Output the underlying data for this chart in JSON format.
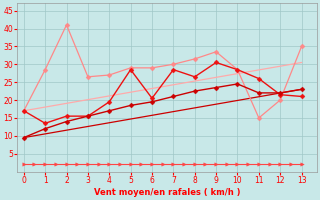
{
  "background_color": "#c8e8e8",
  "grid_color": "#b0d0d0",
  "xlabel": "Vent moyen/en rafales ( km/h )",
  "xlabel_color": "#ff0000",
  "tick_color": "#ff0000",
  "ylim": [
    0,
    47
  ],
  "xlim": [
    -0.3,
    13.7
  ],
  "yticks": [
    5,
    10,
    15,
    20,
    25,
    30,
    35,
    40,
    45
  ],
  "xticks": [
    0,
    1,
    2,
    3,
    4,
    5,
    6,
    7,
    8,
    9,
    10,
    11,
    12,
    13
  ],
  "series": [
    {
      "name": "linear_trend",
      "x": [
        0,
        1,
        2,
        3,
        4,
        5,
        6,
        7,
        8,
        9,
        10,
        11,
        12,
        13
      ],
      "y": [
        9.5,
        12.0,
        14.0,
        15.5,
        17.0,
        18.5,
        19.5,
        21.0,
        22.5,
        23.5,
        24.5,
        22.0,
        22.0,
        23.0
      ],
      "color": "#cc0000",
      "linewidth": 1.0,
      "marker": "D",
      "markersize": 2.5,
      "linestyle": "-",
      "zorder": 4
    },
    {
      "name": "zigzag_dark",
      "x": [
        0,
        1,
        2,
        3,
        4,
        5,
        6,
        7,
        8,
        9,
        10,
        11,
        12,
        13
      ],
      "y": [
        17.0,
        13.5,
        15.5,
        15.5,
        19.5,
        28.5,
        20.5,
        28.5,
        26.5,
        30.5,
        28.5,
        26.0,
        21.5,
        21.0
      ],
      "color": "#ee1111",
      "linewidth": 1.0,
      "marker": "D",
      "markersize": 2.5,
      "linestyle": "-",
      "zorder": 3
    },
    {
      "name": "light_zigzag",
      "x": [
        0,
        1,
        2,
        3,
        4,
        5,
        6,
        7,
        8,
        9,
        10,
        11,
        12,
        13
      ],
      "y": [
        17.0,
        28.5,
        41.0,
        26.5,
        27.0,
        29.0,
        29.0,
        30.0,
        31.5,
        33.5,
        28.5,
        15.0,
        20.0,
        35.0
      ],
      "color": "#ff8888",
      "linewidth": 0.9,
      "marker": "D",
      "markersize": 2.5,
      "linestyle": "-",
      "zorder": 2
    },
    {
      "name": "trend_band_upper",
      "x": [
        0,
        13
      ],
      "y": [
        17.0,
        30.5
      ],
      "color": "#ffaaaa",
      "linewidth": 0.9,
      "marker": null,
      "markersize": 0,
      "linestyle": "-",
      "zorder": 1
    },
    {
      "name": "trend_band_lower",
      "x": [
        0,
        13
      ],
      "y": [
        9.5,
        23.0
      ],
      "color": "#cc0000",
      "linewidth": 0.9,
      "marker": null,
      "markersize": 0,
      "linestyle": "-",
      "zorder": 1
    },
    {
      "name": "flat_arrow",
      "x": [
        0,
        0.5,
        1,
        1.5,
        2,
        2.5,
        3,
        3.5,
        4,
        4.5,
        5,
        5.5,
        6,
        6.5,
        7,
        7.5,
        8,
        8.5,
        9,
        9.5,
        10,
        10.5,
        11,
        11.5,
        12,
        12.5,
        13
      ],
      "y": [
        2,
        2,
        2,
        2,
        2,
        2,
        2,
        2,
        2,
        2,
        2,
        2,
        2,
        2,
        2,
        2,
        2,
        2,
        2,
        2,
        2,
        2,
        2,
        2,
        2,
        2,
        2
      ],
      "color": "#ff4444",
      "linewidth": 0.8,
      "marker": ">",
      "markersize": 2.5,
      "linestyle": "-",
      "zorder": 5
    }
  ]
}
